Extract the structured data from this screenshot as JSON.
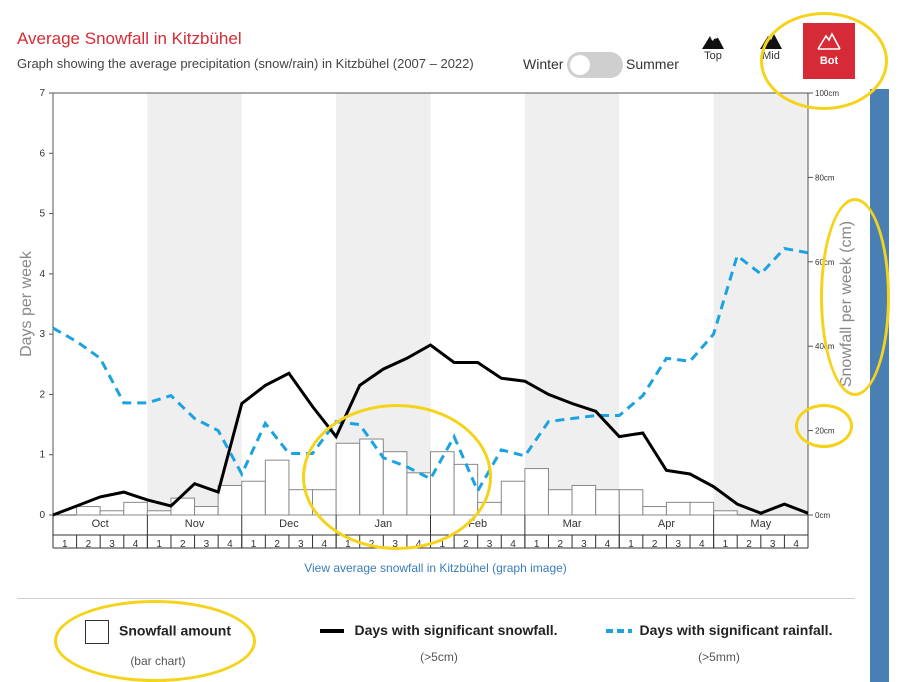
{
  "header": {
    "title": "Average Snowfall in Kitzbühel",
    "subtitle": "Graph showing the average precipitation (snow/rain) in Kitzbühel (2007 – 2022)"
  },
  "season_toggle": {
    "left_label": "Winter",
    "right_label": "Summer",
    "selected": "Winter"
  },
  "elevation_tabs": [
    {
      "label": "Top",
      "icon": "mountain-top-icon",
      "active": false
    },
    {
      "label": "Mid",
      "icon": "mountain-mid-icon",
      "active": false
    },
    {
      "label": "Bot",
      "icon": "mountain-bot-icon",
      "active": true
    }
  ],
  "link_text": "View average snowfall in Kitzbühel (graph image)",
  "legend": [
    {
      "label": "Snowfall amount",
      "sub": "(bar chart)",
      "symbol": "box"
    },
    {
      "label": "Days with significant snowfall.",
      "sub": "(>5cm)",
      "symbol": "solid-line"
    },
    {
      "label": "Days with significant rainfall.",
      "sub": "(>5mm)",
      "symbol": "dashed-line"
    }
  ],
  "colors": {
    "accent": "#d62b36",
    "rain": "#1aa3e0",
    "snow_line": "#000000",
    "bars": "#ffffff",
    "band": "#efefef",
    "side_bar": "#4a7fb3",
    "highlight": "#f6d31b"
  },
  "chart_data": {
    "type": "bar+line",
    "ylabel": "Days per week",
    "y2label": "Snowfall per week (cm)",
    "ylim": [
      0,
      7
    ],
    "yticks": [
      "0",
      "1",
      "2",
      "3",
      "4",
      "5",
      "6",
      "7"
    ],
    "y2lim": [
      0,
      100
    ],
    "y2ticks": [
      "0cm",
      "20cm",
      "40cm",
      "60cm",
      "80cm",
      "100cm"
    ],
    "months": [
      "Oct",
      "Nov",
      "Dec",
      "Jan",
      "Feb",
      "Mar",
      "Apr",
      "May"
    ],
    "week_labels": [
      "1",
      "2",
      "3",
      "4"
    ],
    "snowfall_cm": [
      0,
      2,
      1,
      3,
      1,
      4,
      2,
      7,
      8,
      13,
      6,
      6,
      17,
      18,
      15,
      10,
      15,
      12,
      3,
      8,
      11,
      6,
      7,
      6,
      6,
      2,
      3,
      3,
      1,
      0,
      0,
      0
    ],
    "snow_days": [
      0,
      0.15,
      0.3,
      0.38,
      0.25,
      0.15,
      0.52,
      0.38,
      1.85,
      2.15,
      2.35,
      1.8,
      1.3,
      2.15,
      2.42,
      2.6,
      2.82,
      2.53,
      2.53,
      2.27,
      2.22,
      2.0,
      1.85,
      1.72,
      1.3,
      1.36,
      0.74,
      0.68,
      0.47,
      0.18,
      0.03,
      0.18,
      0.03
    ],
    "rain_days": [
      3.1,
      2.88,
      2.6,
      1.86,
      1.86,
      1.98,
      1.6,
      1.4,
      0.68,
      1.52,
      1.02,
      1.02,
      1.55,
      1.5,
      0.95,
      0.8,
      0.6,
      1.3,
      0.4,
      1.08,
      0.98,
      1.55,
      1.6,
      1.65,
      1.65,
      1.98,
      2.6,
      2.55,
      3.0,
      4.3,
      4.0,
      4.42,
      4.35
    ]
  }
}
